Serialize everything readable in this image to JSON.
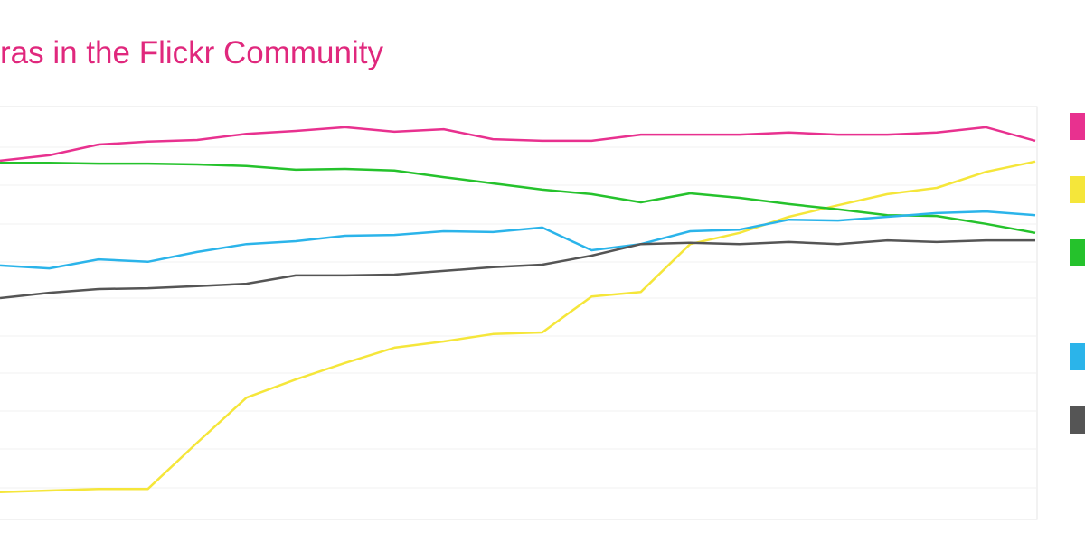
{
  "chart_data": {
    "type": "line",
    "title": "ras in the Flickr Community",
    "categories": [
      null,
      null,
      null,
      null,
      null,
      null,
      null,
      null,
      null,
      null,
      null,
      null,
      null,
      null,
      null,
      null,
      null,
      null,
      null,
      null,
      null,
      null
    ],
    "ylim": [
      0,
      100
    ],
    "series": [
      {
        "color": "#e8318f",
        "values": [
          86.9,
          88.2,
          90.8,
          91.5,
          91.9,
          93.4,
          94.1,
          95.0,
          93.9,
          94.5,
          92.1,
          91.7,
          91.7,
          93.2,
          93.2,
          93.2,
          93.7,
          93.2,
          93.2,
          93.7,
          95.0,
          91.7
        ]
      },
      {
        "color": "#f5e63a",
        "values": [
          6.6,
          7.0,
          7.4,
          7.4,
          18.6,
          29.5,
          33.9,
          37.9,
          41.6,
          43.1,
          44.9,
          45.3,
          54.0,
          55.1,
          66.7,
          69.4,
          73.3,
          76.1,
          78.8,
          80.3,
          84.2,
          86.7
        ]
      },
      {
        "color": "#25c22c",
        "values": [
          86.4,
          86.4,
          86.2,
          86.2,
          86.0,
          85.6,
          84.7,
          84.9,
          84.5,
          82.9,
          81.4,
          79.9,
          78.8,
          76.8,
          79.0,
          77.9,
          76.4,
          75.1,
          73.7,
          73.5,
          71.6,
          69.4
        ]
      },
      {
        "color": "#2bb4ea",
        "values": [
          61.5,
          60.8,
          63.0,
          62.4,
          64.8,
          66.7,
          67.4,
          68.7,
          68.9,
          69.8,
          69.6,
          70.7,
          65.2,
          66.7,
          69.8,
          70.2,
          72.6,
          72.4,
          73.3,
          74.2,
          74.6,
          73.7
        ]
      },
      {
        "color": "#555555",
        "values": [
          53.6,
          54.9,
          55.8,
          56.0,
          56.5,
          57.1,
          59.1,
          59.1,
          59.3,
          60.2,
          61.1,
          61.7,
          63.9,
          66.7,
          67.0,
          66.7,
          67.2,
          66.7,
          67.6,
          67.2,
          67.6,
          67.6
        ]
      }
    ]
  }
}
